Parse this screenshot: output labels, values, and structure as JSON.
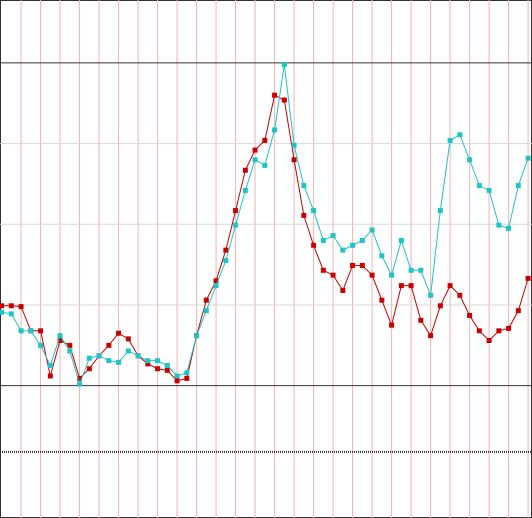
{
  "chart_data": {
    "type": "line",
    "x": [
      0,
      0.5,
      1,
      1.5,
      2,
      2.5,
      3,
      3.5,
      4,
      4.5,
      5,
      5.5,
      6,
      6.5,
      7,
      7.5,
      8,
      8.5,
      9,
      9.5,
      10,
      10.5,
      11,
      11.5,
      12,
      12.5,
      13,
      13.5,
      14,
      14.5,
      15,
      15.5,
      16,
      16.5,
      17,
      17.5,
      18,
      18.5,
      19,
      19.5,
      20,
      20.5,
      21,
      21.5,
      22,
      22.5,
      23,
      23.5,
      24,
      24.5,
      25,
      25.5,
      26,
      26.5,
      27
    ],
    "series": [
      {
        "color": "#c80000",
        "values": [
          0.99,
          0.99,
          0.98,
          0.68,
          0.68,
          0.12,
          0.56,
          0.5,
          0.09,
          0.21,
          0.37,
          0.5,
          0.65,
          0.58,
          0.37,
          0.27,
          0.21,
          0.19,
          0.06,
          0.09,
          0.62,
          1.06,
          1.3,
          1.68,
          2.17,
          2.67,
          2.92,
          3.04,
          3.6,
          3.54,
          2.8,
          2.11,
          1.74,
          1.43,
          1.37,
          1.18,
          1.49,
          1.49,
          1.37,
          1.06,
          0.75,
          1.24,
          1.24,
          0.81,
          0.62,
          0.99,
          1.24,
          1.12,
          0.87,
          0.68,
          0.56,
          0.68,
          0.71,
          0.93,
          1.33
        ]
      },
      {
        "color": "#1fc4c4",
        "values": [
          0.91,
          0.89,
          0.68,
          0.68,
          0.5,
          0.25,
          0.62,
          0.43,
          0.02,
          0.34,
          0.37,
          0.31,
          0.29,
          0.43,
          0.37,
          0.31,
          0.31,
          0.25,
          0.12,
          0.16,
          0.62,
          0.93,
          1.24,
          1.55,
          1.99,
          2.42,
          2.8,
          2.73,
          3.17,
          3.98,
          2.98,
          2.48,
          2.17,
          1.8,
          1.86,
          1.68,
          1.74,
          1.8,
          1.93,
          1.61,
          1.37,
          1.8,
          1.43,
          1.43,
          1.12,
          2.17,
          3.04,
          3.11,
          2.8,
          2.48,
          2.42,
          1.99,
          1.95,
          2.48,
          2.82
        ]
      }
    ],
    "xlim": [
      -0.08,
      27.2
    ],
    "xticks": [
      1,
      2,
      3,
      4,
      5,
      6,
      7,
      8,
      9,
      10,
      11,
      12,
      13,
      14,
      15,
      16,
      17,
      18,
      19,
      20,
      21,
      22,
      23,
      24,
      25,
      26,
      27
    ],
    "ylim": [
      -1.64,
      4.78
    ],
    "yticks": [
      0,
      1,
      2,
      3,
      4
    ],
    "reference_line": -0.82,
    "grid": true
  }
}
